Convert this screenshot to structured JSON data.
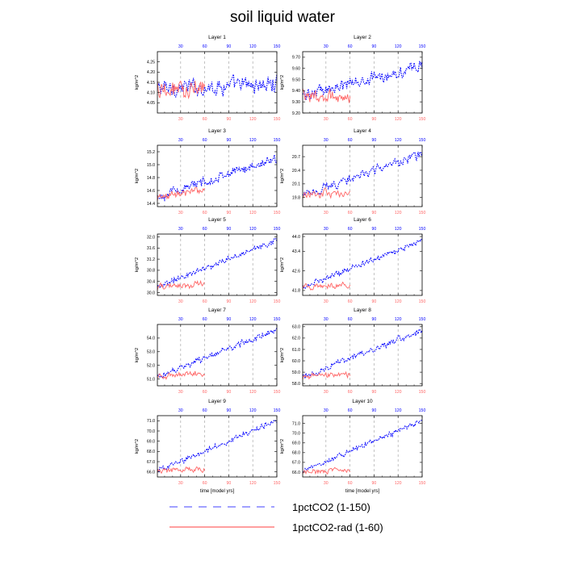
{
  "figure": {
    "title": "soil liquid water",
    "xlabel": "time [model yrs]",
    "ylabel": "kg/m^2"
  },
  "legend": {
    "items": [
      {
        "label": "1pctCO2 (1-150)",
        "color": "#0000ff",
        "style": "dashed"
      },
      {
        "label": "1pctCO2-rad (1-60)",
        "color": "#ff6666",
        "style": "solid"
      }
    ]
  },
  "chart_data": [
    {
      "type": "line",
      "title": "Layer 1",
      "ylabel": "kg/m^2",
      "ylim": [
        4.0,
        4.3
      ],
      "yticks": [
        "4.05",
        "4.10",
        "4.15",
        "4.20",
        "4.25"
      ],
      "xlim": [
        1,
        150
      ],
      "xticks": [
        30,
        60,
        90,
        120,
        150
      ],
      "series": [
        {
          "name": "1pctCO2 (1-150)",
          "range": [
            1,
            150
          ],
          "start": 4.12,
          "end": 4.14,
          "amp": 0.045
        },
        {
          "name": "1pctCO2-rad (1-60)",
          "range": [
            1,
            60
          ],
          "start": 4.12,
          "end": 4.13,
          "amp": 0.05
        }
      ]
    },
    {
      "type": "line",
      "title": "Layer 2",
      "ylabel": "kg/m^2",
      "ylim": [
        9.2,
        9.75
      ],
      "yticks": [
        "9.20",
        "9.30",
        "9.40",
        "9.50",
        "9.60",
        "9.70"
      ],
      "xlim": [
        1,
        150
      ],
      "xticks": [
        30,
        60,
        90,
        120,
        150
      ],
      "series": [
        {
          "name": "1pctCO2 (1-150)",
          "range": [
            1,
            150
          ],
          "start": 9.36,
          "end": 9.62,
          "amp": 0.06
        },
        {
          "name": "1pctCO2-rad (1-60)",
          "range": [
            1,
            60
          ],
          "start": 9.36,
          "end": 9.34,
          "amp": 0.06
        }
      ]
    },
    {
      "type": "line",
      "title": "Layer 3",
      "ylabel": "kg/m^2",
      "ylim": [
        14.35,
        15.3
      ],
      "yticks": [
        "14.4",
        "14.6",
        "14.8",
        "15.0",
        "15.2"
      ],
      "xlim": [
        1,
        150
      ],
      "xticks": [
        30,
        60,
        90,
        120,
        150
      ],
      "series": [
        {
          "name": "1pctCO2 (1-150)",
          "range": [
            1,
            150
          ],
          "start": 14.5,
          "end": 15.1,
          "amp": 0.08
        },
        {
          "name": "1pctCO2-rad (1-60)",
          "range": [
            1,
            60
          ],
          "start": 14.5,
          "end": 14.6,
          "amp": 0.07
        }
      ]
    },
    {
      "type": "line",
      "title": "Layer 4",
      "ylabel": "kg/m^2",
      "ylim": [
        19.6,
        20.95
      ],
      "yticks": [
        "19.8",
        "20.1",
        "20.4",
        "20.7"
      ],
      "xlim": [
        1,
        150
      ],
      "xticks": [
        30,
        60,
        90,
        120,
        150
      ],
      "series": [
        {
          "name": "1pctCO2 (1-150)",
          "range": [
            1,
            150
          ],
          "start": 19.85,
          "end": 20.75,
          "amp": 0.11
        },
        {
          "name": "1pctCO2-rad (1-60)",
          "range": [
            1,
            60
          ],
          "start": 19.85,
          "end": 19.9,
          "amp": 0.1
        }
      ]
    },
    {
      "type": "line",
      "title": "Layer 5",
      "ylabel": "kg/m^2",
      "ylim": [
        29.9,
        32.1
      ],
      "yticks": [
        "30.0",
        "30.4",
        "30.8",
        "31.2",
        "31.6",
        "32.0"
      ],
      "xlim": [
        1,
        150
      ],
      "xticks": [
        30,
        60,
        90,
        120,
        150
      ],
      "series": [
        {
          "name": "1pctCO2 (1-150)",
          "range": [
            1,
            150
          ],
          "start": 30.2,
          "end": 31.9,
          "amp": 0.12
        },
        {
          "name": "1pctCO2-rad (1-60)",
          "range": [
            1,
            60
          ],
          "start": 30.2,
          "end": 30.3,
          "amp": 0.12
        }
      ]
    },
    {
      "type": "line",
      "title": "Layer 6",
      "ylabel": "kg/m^2",
      "ylim": [
        41.6,
        44.1
      ],
      "yticks": [
        "41.8",
        "42.6",
        "43.4",
        "44.0"
      ],
      "xlim": [
        1,
        150
      ],
      "xticks": [
        30,
        60,
        90,
        120,
        150
      ],
      "series": [
        {
          "name": "1pctCO2 (1-150)",
          "range": [
            1,
            150
          ],
          "start": 41.95,
          "end": 43.8,
          "amp": 0.14
        },
        {
          "name": "1pctCO2-rad (1-60)",
          "range": [
            1,
            60
          ],
          "start": 41.95,
          "end": 42.0,
          "amp": 0.14
        }
      ]
    },
    {
      "type": "line",
      "title": "Layer 7",
      "ylabel": "kg/m^2",
      "ylim": [
        50.5,
        55.0
      ],
      "yticks": [
        "51.0",
        "52.0",
        "53.0",
        "54.0"
      ],
      "xlim": [
        1,
        150
      ],
      "xticks": [
        30,
        60,
        90,
        120,
        150
      ],
      "series": [
        {
          "name": "1pctCO2 (1-150)",
          "range": [
            1,
            150
          ],
          "start": 51.2,
          "end": 54.6,
          "amp": 0.25
        },
        {
          "name": "1pctCO2-rad (1-60)",
          "range": [
            1,
            60
          ],
          "start": 51.2,
          "end": 51.4,
          "amp": 0.25
        }
      ]
    },
    {
      "type": "line",
      "title": "Layer 8",
      "ylabel": "kg/m^2",
      "ylim": [
        57.8,
        63.2
      ],
      "yticks": [
        "58.0",
        "59.0",
        "60.0",
        "61.0",
        "62.0",
        "63.0"
      ],
      "xlim": [
        1,
        150
      ],
      "xticks": [
        30,
        60,
        90,
        120,
        150
      ],
      "series": [
        {
          "name": "1pctCO2 (1-150)",
          "range": [
            1,
            150
          ],
          "start": 58.6,
          "end": 62.7,
          "amp": 0.3
        },
        {
          "name": "1pctCO2-rad (1-60)",
          "range": [
            1,
            60
          ],
          "start": 58.6,
          "end": 58.8,
          "amp": 0.3
        }
      ]
    },
    {
      "type": "line",
      "title": "Layer 9",
      "ylabel": "kg/m^2",
      "ylim": [
        65.5,
        71.5
      ],
      "yticks": [
        "66.0",
        "67.0",
        "68.0",
        "69.0",
        "70.0",
        "71.0"
      ],
      "xlim": [
        1,
        150
      ],
      "xticks": [
        30,
        60,
        90,
        120,
        150
      ],
      "series": [
        {
          "name": "1pctCO2 (1-150)",
          "range": [
            1,
            150
          ],
          "start": 66.1,
          "end": 71.0,
          "amp": 0.3
        },
        {
          "name": "1pctCO2-rad (1-60)",
          "range": [
            1,
            60
          ],
          "start": 66.1,
          "end": 66.3,
          "amp": 0.3
        }
      ]
    },
    {
      "type": "line",
      "title": "Layer 10",
      "ylabel": "kg/m^2",
      "ylim": [
        65.5,
        71.8
      ],
      "yticks": [
        "66.0",
        "67.0",
        "68.0",
        "69.0",
        "70.0",
        "71.0"
      ],
      "xlim": [
        1,
        150
      ],
      "xticks": [
        30,
        60,
        90,
        120,
        150
      ],
      "series": [
        {
          "name": "1pctCO2 (1-150)",
          "range": [
            1,
            150
          ],
          "start": 66.0,
          "end": 71.3,
          "amp": 0.3
        },
        {
          "name": "1pctCO2-rad (1-60)",
          "range": [
            1,
            60
          ],
          "start": 66.0,
          "end": 66.2,
          "amp": 0.3
        }
      ]
    }
  ]
}
